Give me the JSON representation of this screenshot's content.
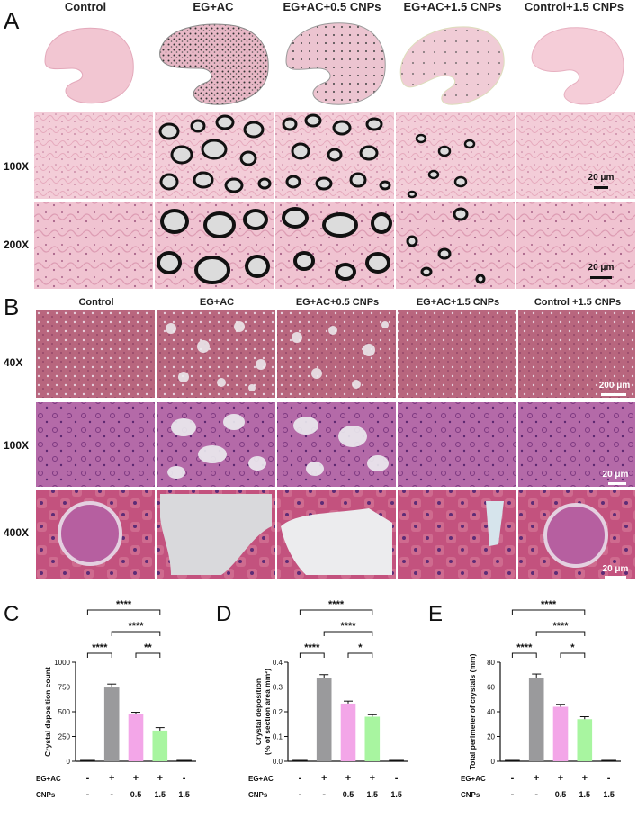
{
  "panelA": {
    "letter": "A",
    "groups": [
      "Control",
      "EG+AC",
      "EG+AC+0.5 CNPs",
      "EG+AC+1.5 CNPs",
      "Control+1.5 CNPs"
    ],
    "rows": [
      "100X",
      "200X"
    ],
    "scale_bars": [
      "20 μm",
      "20 μm"
    ]
  },
  "panelB": {
    "letter": "B",
    "groups": [
      "Control",
      "EG+AC",
      "EG+AC+0.5 CNPs",
      "EG+AC+1.5 CNPs",
      "Control +1.5 CNPs"
    ],
    "rows": [
      "40X",
      "100X",
      "400X"
    ],
    "scale_bars": [
      "200 μm",
      "20 μm",
      "20 μm"
    ]
  },
  "colors": {
    "gray": "#9a9a9c",
    "pink": "#f3a6e8",
    "green": "#a8f5a0",
    "black": "#111111",
    "he_pink": "#f2c6d4",
    "pas_purple": "#a0529a"
  },
  "chart_data": [
    {
      "letter": "C",
      "type": "bar",
      "categories": [
        "1",
        "2",
        "3",
        "4",
        "5"
      ],
      "values": [
        5,
        745,
        475,
        310,
        5
      ],
      "errors": [
        3,
        35,
        20,
        30,
        3
      ],
      "bar_colors": [
        "#111111",
        "#9a9a9c",
        "#f3a6e8",
        "#a8f5a0",
        "#111111"
      ],
      "ylabel": "Crystal deposition count",
      "ylim": [
        0,
        1000
      ],
      "yticks": [
        0,
        250,
        500,
        750,
        1000
      ],
      "conditions": [
        {
          "label": "EG+AC",
          "values": [
            "-",
            "+",
            "+",
            "+",
            "-"
          ]
        },
        {
          "label": "CNPs",
          "values": [
            "-",
            "-",
            "0.5",
            "1.5",
            "1.5"
          ]
        }
      ],
      "significance": [
        {
          "from": 0,
          "to": 1,
          "label": "****"
        },
        {
          "from": 2,
          "to": 3,
          "label": "**"
        },
        {
          "from": 1,
          "to": 3,
          "label": "****"
        },
        {
          "from": 0,
          "to": 3,
          "label": "****"
        }
      ]
    },
    {
      "letter": "D",
      "type": "bar",
      "categories": [
        "1",
        "2",
        "3",
        "4",
        "5"
      ],
      "values": [
        0.002,
        0.335,
        0.233,
        0.18,
        0.002
      ],
      "errors": [
        0.001,
        0.015,
        0.01,
        0.008,
        0.001
      ],
      "bar_colors": [
        "#111111",
        "#9a9a9c",
        "#f3a6e8",
        "#a8f5a0",
        "#111111"
      ],
      "ylabel": "Crystal deposition",
      "ylabel2": "(% of section area mm²)",
      "ylim": [
        0,
        0.4
      ],
      "yticks": [
        0.0,
        0.1,
        0.2,
        0.3,
        0.4
      ],
      "ytick_labels": [
        "0.0",
        "0.1",
        "0.2",
        "0.3",
        "0.4"
      ],
      "conditions": [
        {
          "label": "EG+AC",
          "values": [
            "-",
            "+",
            "+",
            "+",
            "-"
          ]
        },
        {
          "label": "CNPs",
          "values": [
            "-",
            "-",
            "0.5",
            "1.5",
            "1.5"
          ]
        }
      ],
      "significance": [
        {
          "from": 0,
          "to": 1,
          "label": "****"
        },
        {
          "from": 2,
          "to": 3,
          "label": "*"
        },
        {
          "from": 1,
          "to": 3,
          "label": "****"
        },
        {
          "from": 0,
          "to": 3,
          "label": "****"
        }
      ]
    },
    {
      "letter": "E",
      "type": "bar",
      "categories": [
        "1",
        "2",
        "3",
        "4",
        "5"
      ],
      "values": [
        0.5,
        67.5,
        44,
        34,
        0.5
      ],
      "errors": [
        0.3,
        3,
        2,
        2,
        0.3
      ],
      "bar_colors": [
        "#111111",
        "#9a9a9c",
        "#f3a6e8",
        "#a8f5a0",
        "#111111"
      ],
      "ylabel": "Total perimeter of crystals (mm)",
      "ylim": [
        0,
        80
      ],
      "yticks": [
        0,
        20,
        40,
        60,
        80
      ],
      "conditions": [
        {
          "label": "EG+AC",
          "values": [
            "-",
            "+",
            "+",
            "+",
            "-"
          ]
        },
        {
          "label": "CNPs",
          "values": [
            "-",
            "-",
            "0.5",
            "1.5",
            "1.5"
          ]
        }
      ],
      "significance": [
        {
          "from": 0,
          "to": 1,
          "label": "****"
        },
        {
          "from": 2,
          "to": 3,
          "label": "*"
        },
        {
          "from": 1,
          "to": 3,
          "label": "****"
        },
        {
          "from": 0,
          "to": 3,
          "label": "****"
        }
      ]
    }
  ]
}
